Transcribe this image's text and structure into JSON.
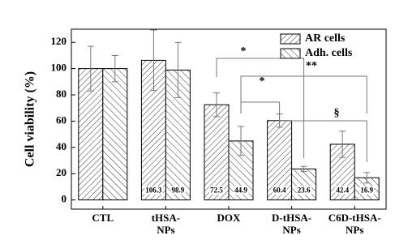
{
  "chart_data": {
    "type": "bar",
    "ylabel": "Cell viability (%)",
    "categories": [
      "CTL",
      "tHSA-NPs",
      "DOX",
      "D-tHSA-NPs",
      "C6D-tHSA-NPs"
    ],
    "series": [
      {
        "name": "AR cells",
        "color": "#000000",
        "hatch": "/",
        "values": [
          100,
          106.3,
          72.5,
          60.4,
          42.4
        ],
        "errors": [
          17,
          23,
          9,
          5,
          10
        ],
        "value_labels": [
          null,
          "106.3",
          "72.5",
          "60.4",
          "42.4"
        ]
      },
      {
        "name": "Adh. cells",
        "color": "#000000",
        "hatch": "\\",
        "values": [
          100,
          98.9,
          44.9,
          23.6,
          16.9
        ],
        "errors": [
          10,
          21,
          11,
          2,
          4
        ],
        "value_labels": [
          null,
          "98.9",
          "44.9",
          "23.6",
          "16.9"
        ]
      }
    ],
    "ylim": [
      -7,
      130
    ],
    "yticks": [
      0,
      20,
      40,
      60,
      80,
      100,
      120
    ],
    "legend": "upper right",
    "annotations": [
      "*",
      "*",
      "**",
      "§"
    ]
  }
}
